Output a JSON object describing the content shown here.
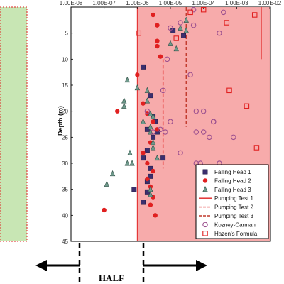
{
  "chart_data": {
    "type": "scatter",
    "ylabel": "Depth (m)",
    "x_tick_labels": [
      "1.00E-08",
      "1.00E-07",
      "1.00E-06",
      "1.00E-05",
      "1.00E-04",
      "1.00E-03",
      "1.00E-02"
    ],
    "y_tick_labels": [
      "5",
      "10",
      "15",
      "20",
      "25",
      "30",
      "35",
      "40",
      "45"
    ],
    "xscale": "log",
    "xlim": [
      1e-08,
      0.01
    ],
    "ylim": [
      0,
      45
    ],
    "y_inverted": true,
    "grid": false,
    "legend_position": "bottom-right",
    "shaded_regions": [
      {
        "x_from": 1e-06,
        "x_to": 0.01,
        "color": "#f7a7a7"
      },
      {
        "side": "left",
        "color": "#c8e6b4"
      }
    ],
    "series": [
      {
        "name": "Falling Head 1",
        "marker": "square",
        "color": "#3b2f6e",
        "points": [
          [
            1.5e-06,
            11.5
          ],
          [
            2.5e-06,
            17
          ],
          [
            3e-06,
            21
          ],
          [
            2e-06,
            23.5
          ],
          [
            3e-06,
            25
          ],
          [
            2e-06,
            27.5
          ],
          [
            1.5e-06,
            29
          ],
          [
            2.5e-06,
            31
          ],
          [
            2.5e-06,
            32.5
          ],
          [
            2e-06,
            33.5
          ],
          [
            8e-07,
            35
          ],
          [
            2e-06,
            35.5
          ],
          [
            1.5e-06,
            37.5
          ],
          [
            3.5e-06,
            22
          ],
          [
            4e-06,
            24
          ],
          [
            1.2e-05,
            4.5
          ],
          [
            2.5e-05,
            5.5
          ],
          [
            6e-06,
            29
          ]
        ]
      },
      {
        "name": "Falling Head 2",
        "marker": "circle",
        "color": "#e02020",
        "points": [
          [
            3e-06,
            1.5
          ],
          [
            4e-06,
            3.5
          ],
          [
            4e-06,
            6.5
          ],
          [
            4e-06,
            7.5
          ],
          [
            5e-06,
            9.5
          ],
          [
            1e-06,
            13
          ],
          [
            1.5e-06,
            18.5
          ],
          [
            2e-06,
            20.5
          ],
          [
            3e-06,
            22
          ],
          [
            4e-06,
            23.5
          ],
          [
            2.5e-06,
            26
          ],
          [
            1.5e-06,
            28
          ],
          [
            2e-06,
            30
          ],
          [
            3e-06,
            31.5
          ],
          [
            2e-06,
            33
          ],
          [
            2.5e-06,
            34.5
          ],
          [
            3e-06,
            36.5
          ],
          [
            2.5e-06,
            38
          ],
          [
            3.5e-06,
            40
          ],
          [
            1e-07,
            39
          ],
          [
            2.5e-07,
            20
          ]
        ]
      },
      {
        "name": "Falling Head 3",
        "marker": "triangle",
        "color": "#6f9a8c",
        "points": [
          [
            3e-05,
            2.5
          ],
          [
            3e-05,
            4.5
          ],
          [
            2e-05,
            4
          ],
          [
            1e-05,
            7
          ],
          [
            1.5e-05,
            8
          ],
          [
            5e-07,
            14
          ],
          [
            1e-06,
            15.5
          ],
          [
            2e-06,
            16
          ],
          [
            2e-06,
            18
          ],
          [
            4e-07,
            18
          ],
          [
            4e-07,
            19
          ],
          [
            2.5e-06,
            20.5
          ],
          [
            3e-06,
            21
          ],
          [
            1.5e-06,
            22
          ],
          [
            2.5e-06,
            23
          ],
          [
            2.5e-06,
            24
          ],
          [
            3e-06,
            26
          ],
          [
            3e-06,
            27
          ],
          [
            4e-06,
            29
          ],
          [
            6e-07,
            28
          ],
          [
            5e-07,
            30
          ],
          [
            7e-07,
            30
          ],
          [
            1.8e-07,
            32
          ],
          [
            1.2e-07,
            34
          ],
          [
            2.5e-06,
            35
          ],
          [
            2.5e-06,
            36
          ]
        ]
      },
      {
        "name": "Pumping Test 1",
        "style": "solid",
        "color": "#e02020",
        "x": 0.0055,
        "y_range": [
          0,
          10
        ]
      },
      {
        "name": "Pumping Test 2",
        "style": "dashed",
        "color": "#e02020",
        "x": 6e-06,
        "y_range": [
          10,
          31
        ]
      },
      {
        "name": "Pumping Test 3",
        "style": "dashed",
        "color": "#c0392b",
        "x": 3e-05,
        "y_range": [
          0,
          23
        ]
      },
      {
        "name": "Kozney-Carman",
        "marker": "open-circle",
        "color": "#9b4f8f",
        "points": [
          [
            5e-05,
            0.5
          ],
          [
            0.0004,
            1
          ],
          [
            2e-05,
            3
          ],
          [
            1e-05,
            4
          ],
          [
            5e-05,
            3.5
          ],
          [
            0.0003,
            5
          ],
          [
            8e-06,
            10
          ],
          [
            4e-05,
            13
          ],
          [
            6e-06,
            16
          ],
          [
            2e-06,
            20
          ],
          [
            6e-05,
            20
          ],
          [
            0.0001,
            20
          ],
          [
            1e-05,
            22
          ],
          [
            0.0002,
            22
          ],
          [
            5e-06,
            23.5
          ],
          [
            3e-06,
            24
          ],
          [
            7e-06,
            24
          ],
          [
            6e-05,
            24
          ],
          [
            0.0001,
            24
          ],
          [
            0.00015,
            25
          ],
          [
            0.0008,
            25
          ],
          [
            2e-05,
            28
          ],
          [
            0.0003,
            30
          ],
          [
            6e-05,
            30
          ],
          [
            8e-05,
            30
          ],
          [
            0.0002,
            22
          ]
        ]
      },
      {
        "name": "Hazen's Formula",
        "marker": "open-square",
        "color": "#e02020",
        "points": [
          [
            0.0005,
            3
          ],
          [
            1.1e-06,
            5
          ],
          [
            1.5e-05,
            6
          ],
          [
            0.0006,
            16
          ],
          [
            0.002,
            19
          ],
          [
            0.004,
            27
          ],
          [
            0.0035,
            1.5
          ],
          [
            0.0001,
            0.5
          ],
          [
            4e-05,
            1
          ]
        ]
      }
    ]
  },
  "annotation": {
    "label": "HALF"
  }
}
